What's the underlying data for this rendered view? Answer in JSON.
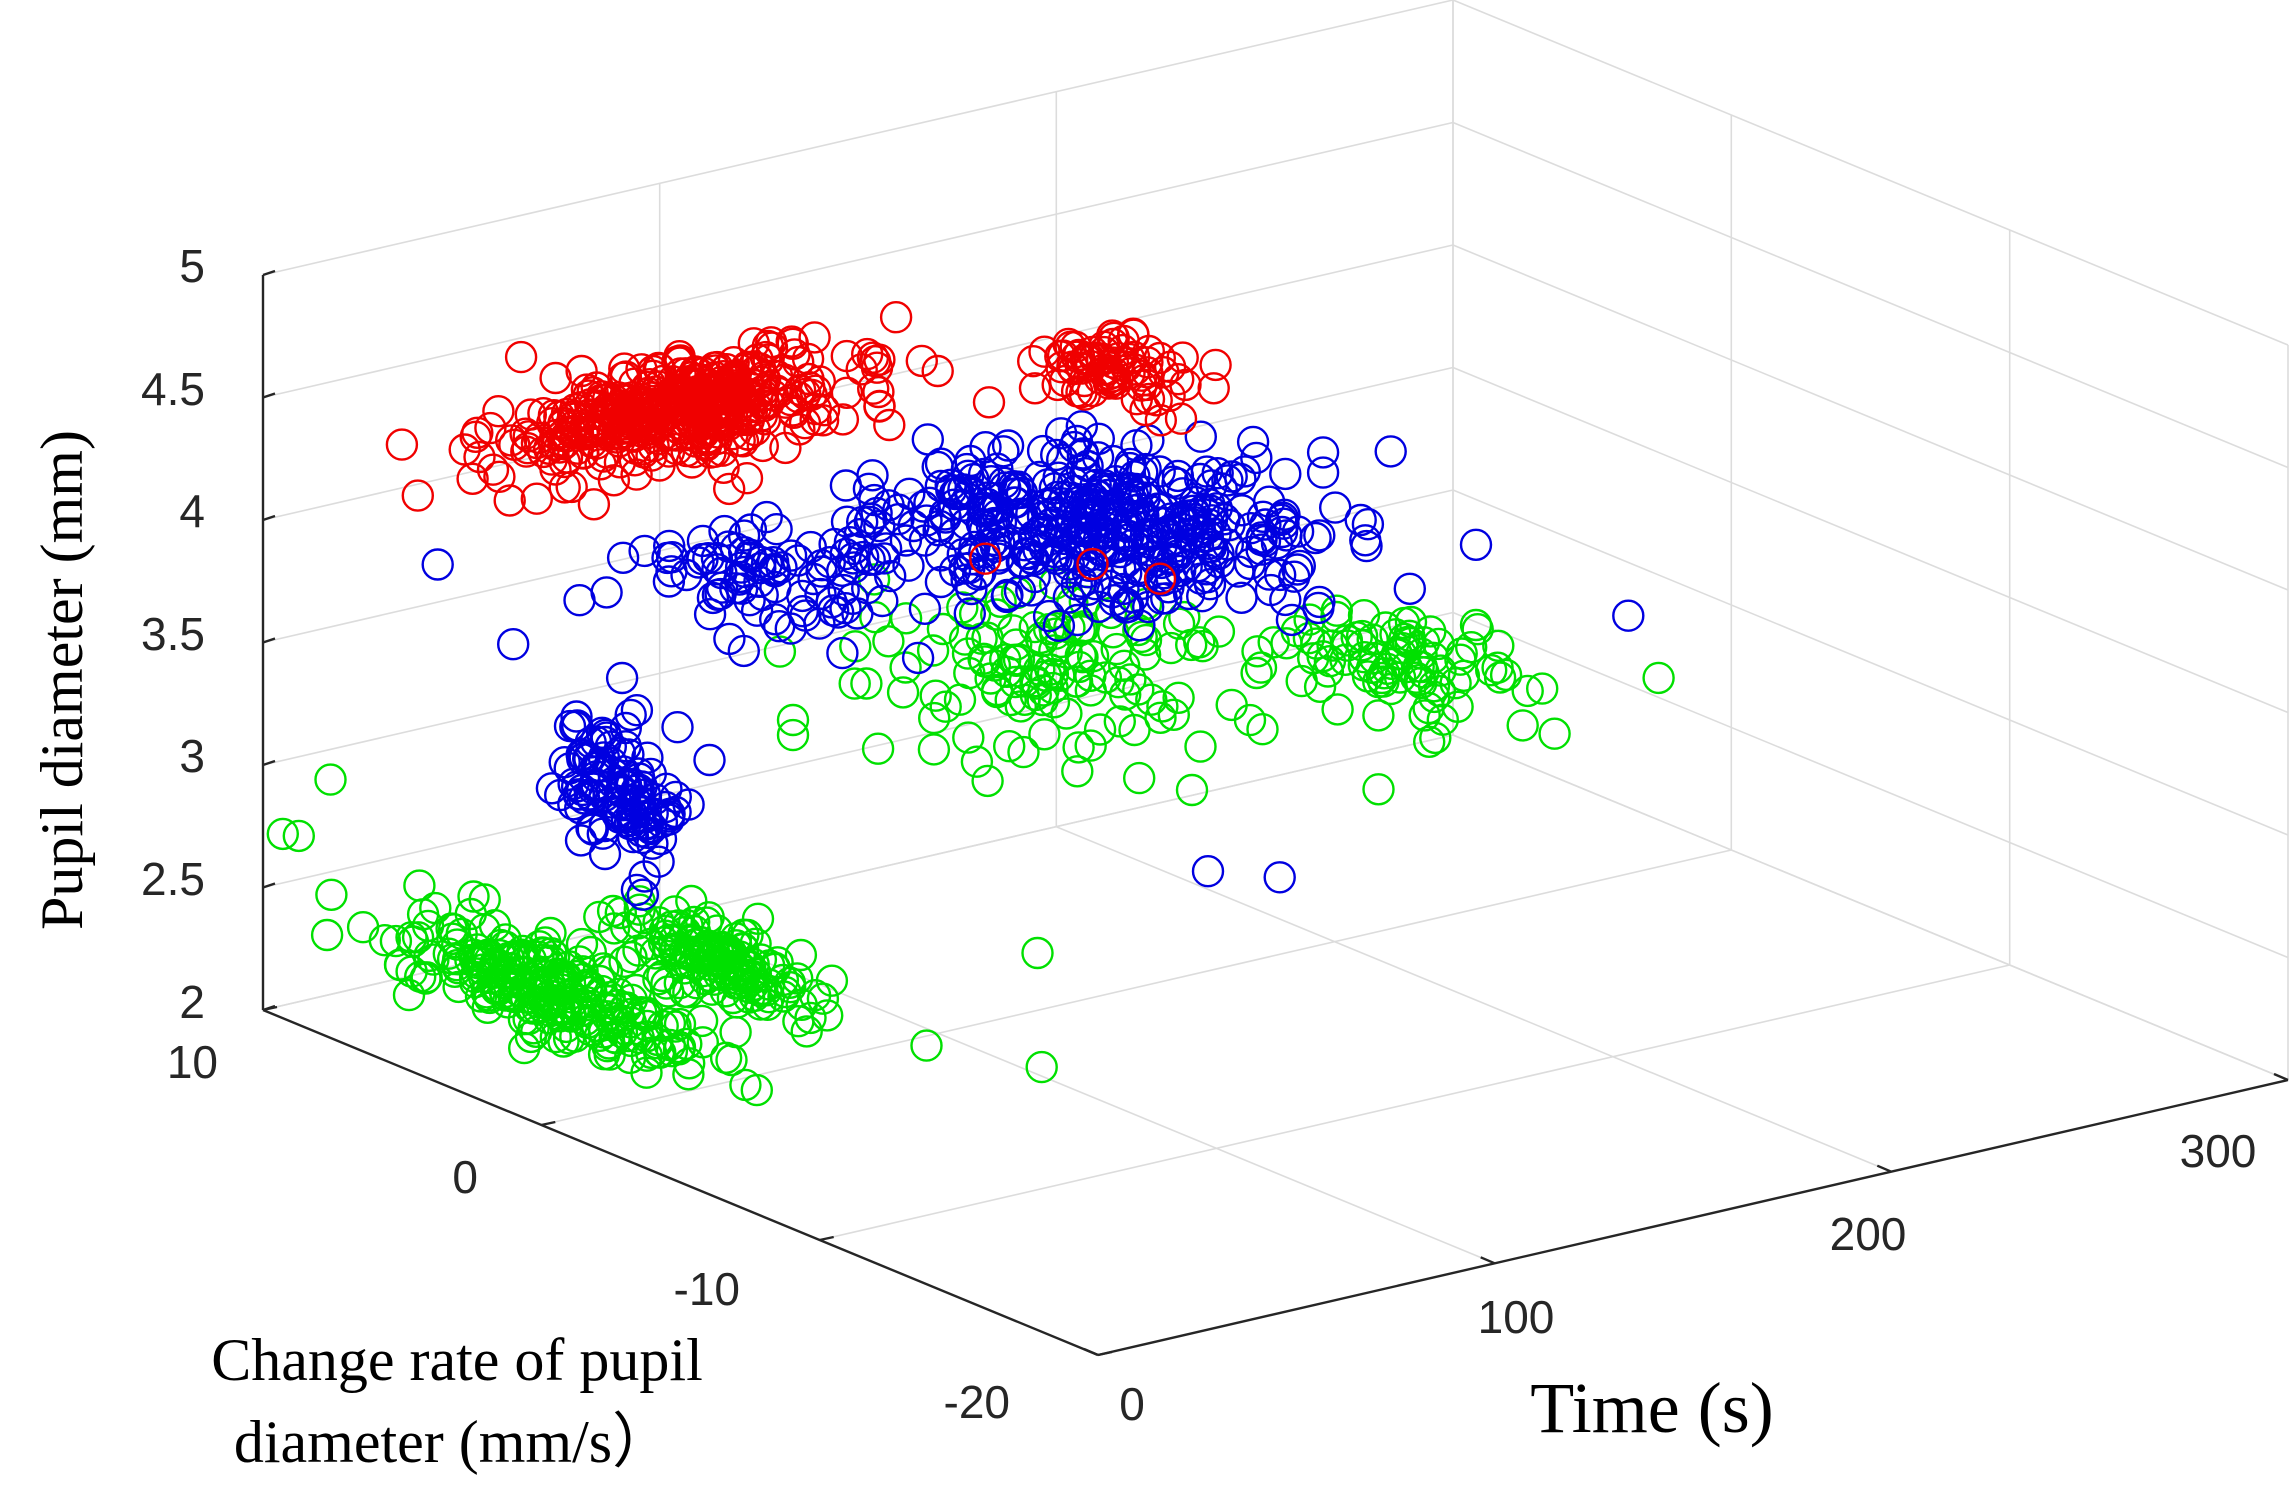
{
  "chart_data": {
    "type": "scatter3d",
    "title": "",
    "x_axis": {
      "label": "Time (s)",
      "range": [
        0,
        300
      ],
      "ticks": [
        "0",
        "100",
        "200",
        "300"
      ]
    },
    "y_axis": {
      "label_line1": "Change rate of pupil",
      "label_line2": "diameter (mm/s）",
      "range": [
        -20,
        10
      ],
      "ticks": [
        "10",
        "0",
        "-10",
        "-20"
      ]
    },
    "z_axis": {
      "label": "Pupil diameter (mm)",
      "range": [
        2,
        5
      ],
      "ticks": [
        "2",
        "2.5",
        "3",
        "3.5",
        "4",
        "4.5",
        "5"
      ]
    },
    "grid": true,
    "marker": "open-circle",
    "series": [
      {
        "name": "green",
        "color": "#00e000",
        "clusters": [
          {
            "time": 15,
            "rate": 2,
            "diam": 2.4,
            "spread_time": 12,
            "spread_rate": 5,
            "spread_diam": 0.18,
            "count": 260
          },
          {
            "time": 30,
            "rate": -2,
            "diam": 2.65,
            "spread_time": 8,
            "spread_rate": 3,
            "spread_diam": 0.12,
            "count": 150
          },
          {
            "time": 160,
            "rate": 5,
            "diam": 3.0,
            "spread_time": 40,
            "spread_rate": 5,
            "spread_diam": 0.18,
            "count": 130
          },
          {
            "time": 230,
            "rate": 2,
            "diam": 2.95,
            "spread_time": 25,
            "spread_rate": 4,
            "spread_diam": 0.15,
            "count": 90
          }
        ],
        "outliers": [
          {
            "time": 2,
            "rate": 9,
            "diam": 2.75
          },
          {
            "time": 5,
            "rate": 10,
            "diam": 2.7
          },
          {
            "time": 10,
            "rate": 9,
            "diam": 2.95
          },
          {
            "time": 55,
            "rate": -6,
            "diam": 2.4
          },
          {
            "time": 70,
            "rate": -8,
            "diam": 2.35
          },
          {
            "time": 90,
            "rate": -5,
            "diam": 2.6
          },
          {
            "time": 150,
            "rate": -2,
            "diam": 2.9
          },
          {
            "time": 190,
            "rate": -3,
            "diam": 2.8
          }
        ]
      },
      {
        "name": "blue",
        "color": "#0000e0",
        "clusters": [
          {
            "time": 48,
            "rate": 4,
            "diam": 3.0,
            "spread_time": 6,
            "spread_rate": 2,
            "spread_diam": 0.28,
            "count": 120
          },
          {
            "time": 175,
            "rate": 5,
            "diam": 3.55,
            "spread_time": 45,
            "spread_rate": 5,
            "spread_diam": 0.18,
            "count": 420
          },
          {
            "time": 110,
            "rate": 8,
            "diam": 3.45,
            "spread_time": 30,
            "spread_rate": 4,
            "spread_diam": 0.15,
            "count": 90
          }
        ],
        "outliers": [
          {
            "time": 35,
            "rate": 6,
            "diam": 3.55
          },
          {
            "time": 130,
            "rate": -8,
            "diam": 2.9
          },
          {
            "time": 140,
            "rate": -4,
            "diam": 2.7
          },
          {
            "time": 260,
            "rate": -2,
            "diam": 3.2
          },
          {
            "time": 30,
            "rate": 8,
            "diam": 3.8
          },
          {
            "time": 240,
            "rate": 3,
            "diam": 3.15
          }
        ]
      },
      {
        "name": "red",
        "color": "#f00000",
        "clusters": [
          {
            "time": 100,
            "rate": 10,
            "diam": 4.1,
            "spread_time": 40,
            "spread_rate": 3,
            "spread_diam": 0.15,
            "count": 460
          },
          {
            "time": 210,
            "rate": 10,
            "diam": 3.85,
            "spread_time": 15,
            "spread_rate": 3,
            "spread_diam": 0.1,
            "count": 80
          }
        ],
        "outliers": [
          {
            "time": 25,
            "rate": 8,
            "diam": 4.1
          },
          {
            "time": 28,
            "rate": 9,
            "diam": 4.25
          },
          {
            "time": 40,
            "rate": 8,
            "diam": 4.3
          },
          {
            "time": 140,
            "rate": 4,
            "diam": 3.6
          },
          {
            "time": 160,
            "rate": 3,
            "diam": 3.55
          },
          {
            "time": 170,
            "rate": 2,
            "diam": 3.5
          }
        ]
      }
    ]
  }
}
